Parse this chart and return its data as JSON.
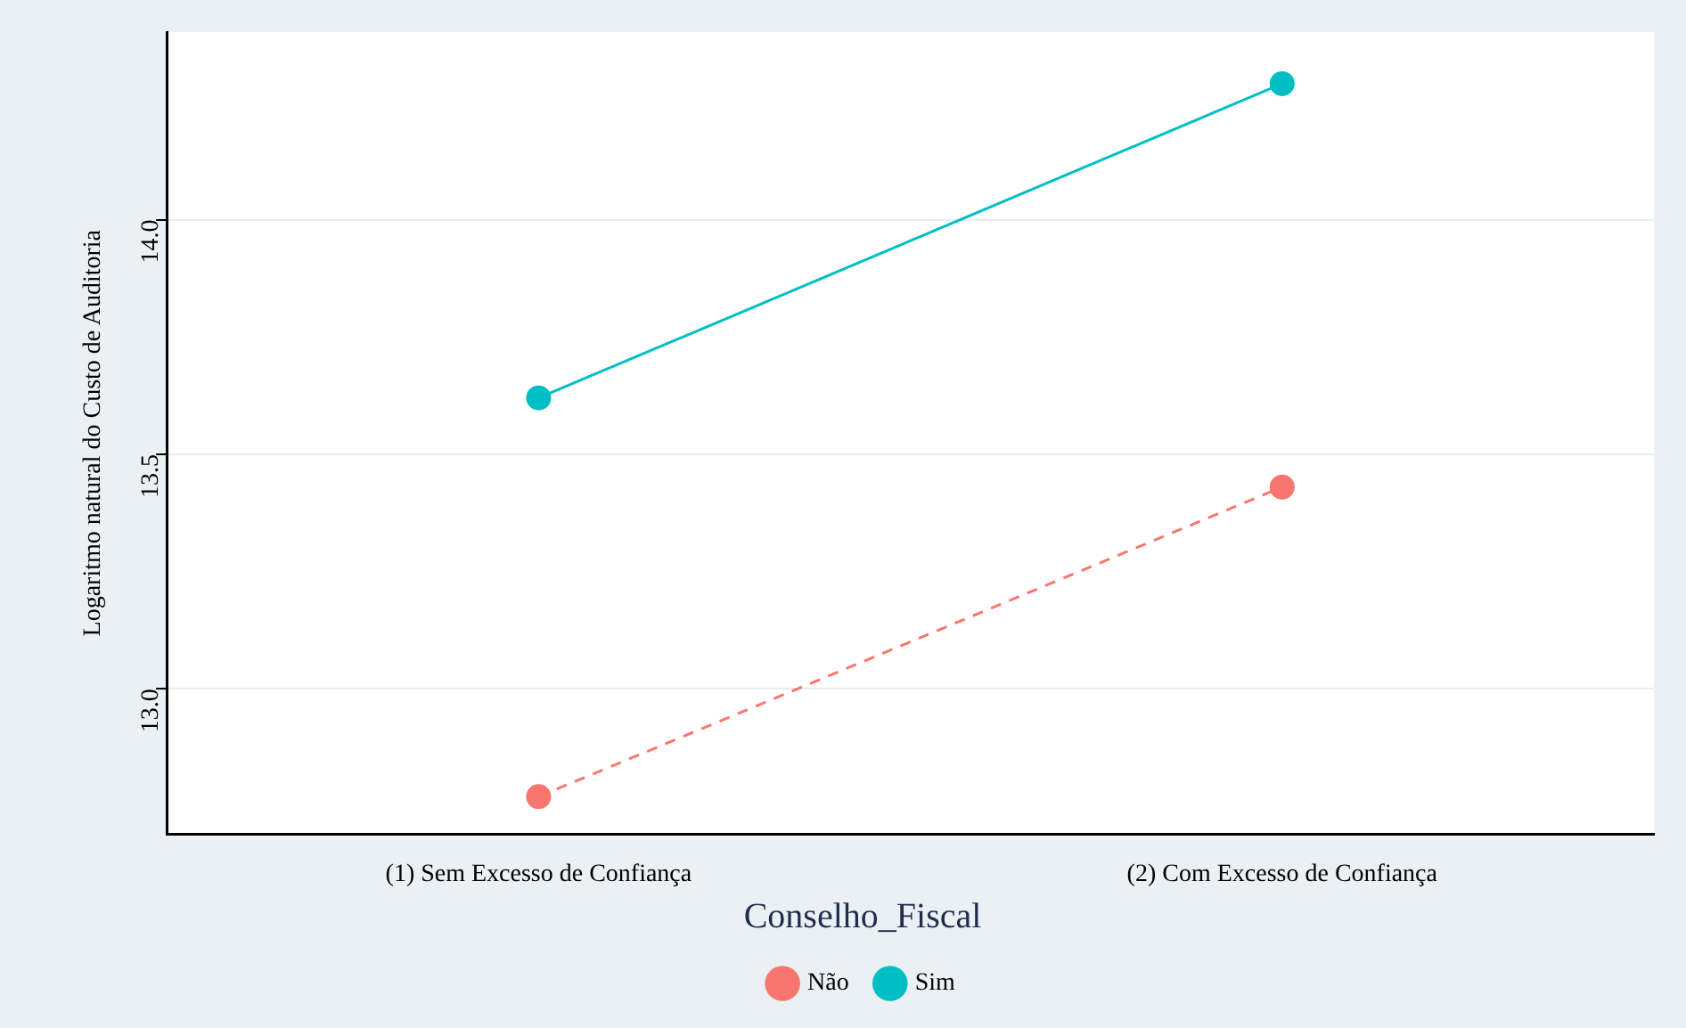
{
  "chart_data": {
    "type": "line",
    "ylabel": "Logaritmo natural do Custo de Auditoria",
    "legend_title": "Conselho_Fiscal",
    "categories": [
      "(1) Sem Excesso de Confiança",
      "(2) Com Excesso de Confiança"
    ],
    "series": [
      {
        "name": "Não",
        "color": "#f8766d",
        "values": [
          12.77,
          13.43
        ],
        "line_style": "dashed"
      },
      {
        "name": "Sim",
        "color": "#00bfc4",
        "values": [
          13.62,
          14.29
        ],
        "line_style": "solid"
      }
    ],
    "ylim": [
      12.69,
      14.4
    ],
    "yticks": [
      {
        "value": 13,
        "label": "13.0"
      },
      13.5,
      {
        "value": 14,
        "label": "14.0"
      }
    ],
    "grid": "y",
    "legend": "bottom",
    "marker": "circle"
  }
}
